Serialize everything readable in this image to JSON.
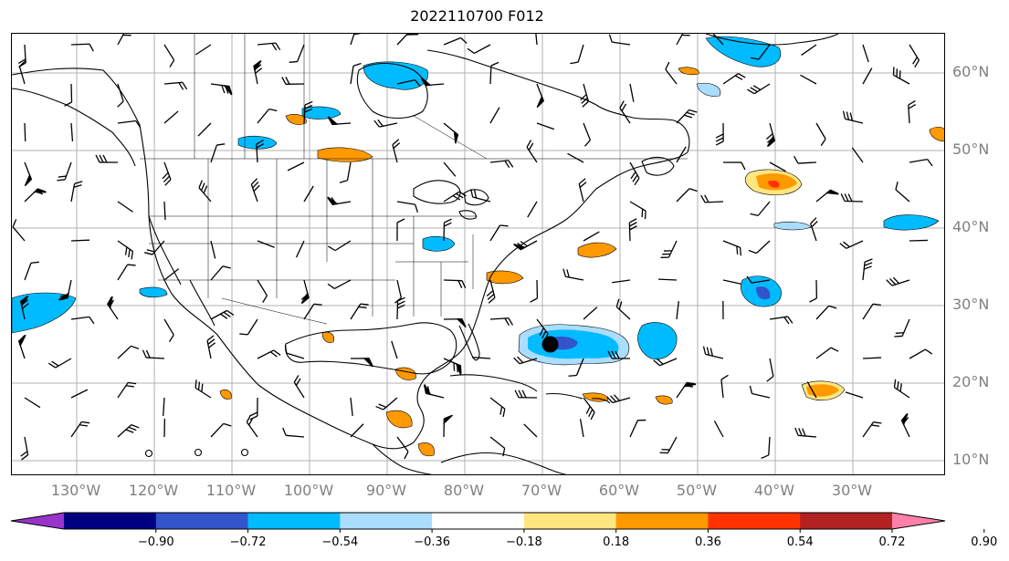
{
  "title": "2022110700 F012",
  "lat_labels": [
    "60°N",
    "50°N",
    "40°N",
    "30°N",
    "20°N",
    "10°N"
  ],
  "lat_values": [
    60,
    50,
    40,
    30,
    20,
    10
  ],
  "lon_labels": [
    "130°W",
    "120°W",
    "110°W",
    "100°W",
    "90°W",
    "80°W",
    "70°W",
    "60°W",
    "50°W",
    "40°W",
    "30°W"
  ],
  "lon_values": [
    -130,
    -120,
    -110,
    -100,
    -90,
    -80,
    -70,
    -60,
    -50,
    -40,
    -30
  ],
  "colorbar": {
    "labels": [
      "−0.90",
      "−0.72",
      "−0.54",
      "−0.36",
      "−0.18",
      "0.18",
      "0.36",
      "0.54",
      "0.72",
      "0.90"
    ],
    "colors": [
      "#9933cc",
      "#000080",
      "#3355cc",
      "#00bbff",
      "#aaddff",
      "#ffffff",
      "#ffe680",
      "#ff9900",
      "#ff3300",
      "#b22222",
      "#ff80aa"
    ]
  },
  "colors": {
    "land_outline": "#000000",
    "grid": "#b0b0b0",
    "barb": "#000000"
  },
  "features": {
    "storm_center": {
      "lon": -69,
      "lat": 25
    }
  }
}
